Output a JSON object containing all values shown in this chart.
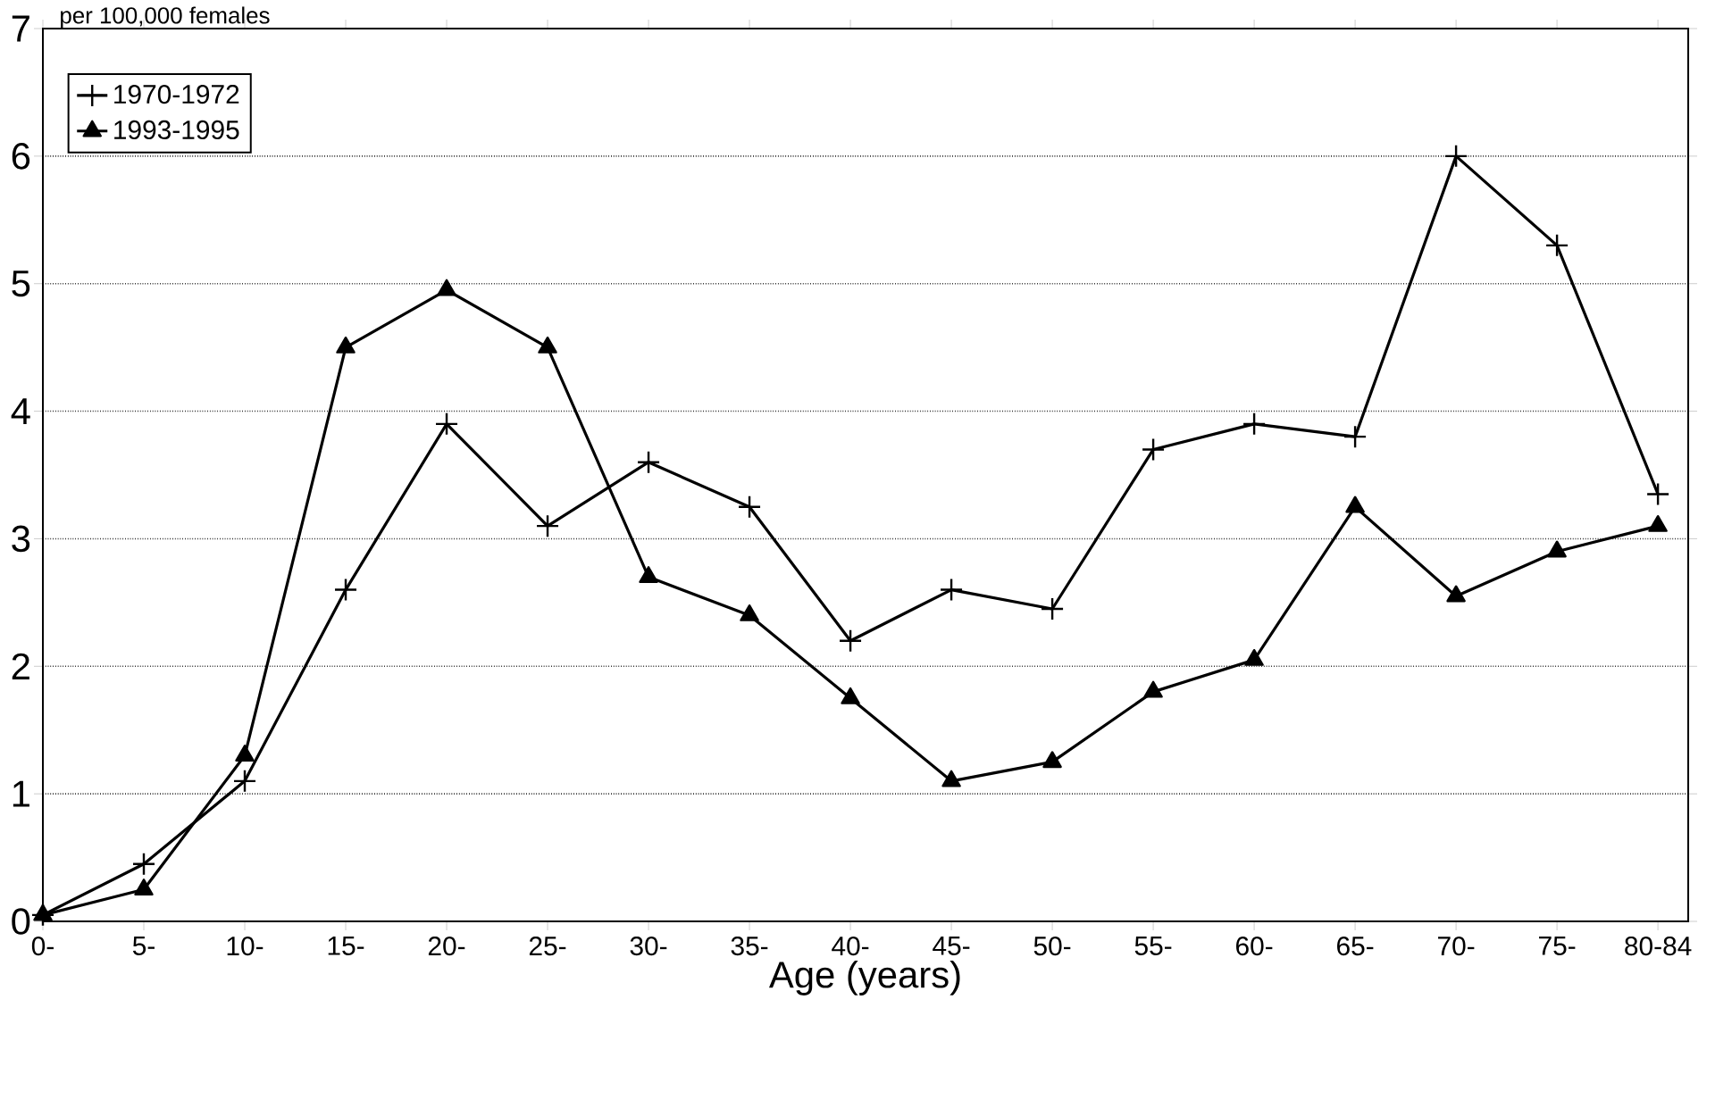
{
  "chart_data": {
    "type": "line",
    "ylabel": "per 100,000 females",
    "xlabel": "Age (years)",
    "categories": [
      "0-",
      "5-",
      "10-",
      "15-",
      "20-",
      "25-",
      "30-",
      "35-",
      "40-",
      "45-",
      "50-",
      "55-",
      "60-",
      "65-",
      "70-",
      "75-",
      "80-84"
    ],
    "series": [
      {
        "name": "1970-1972",
        "color": "#000000",
        "marker": "cross",
        "values": [
          0.05,
          0.45,
          1.1,
          2.6,
          3.9,
          3.1,
          3.6,
          3.25,
          2.2,
          2.6,
          2.45,
          3.7,
          3.9,
          3.8,
          6.0,
          5.3,
          3.35
        ]
      },
      {
        "name": "1993-1995",
        "color": "#000000",
        "marker": "triangle",
        "values": [
          0.05,
          0.25,
          1.3,
          4.5,
          4.95,
          4.5,
          2.7,
          2.4,
          1.75,
          1.1,
          1.25,
          1.8,
          2.05,
          3.25,
          2.55,
          2.9,
          3.1
        ]
      }
    ],
    "ylim": [
      0,
      7
    ],
    "yticks": [
      0,
      1,
      2,
      3,
      4,
      5,
      6,
      7
    ],
    "grid": "y",
    "legend": "top left",
    "line_style": "solid"
  }
}
